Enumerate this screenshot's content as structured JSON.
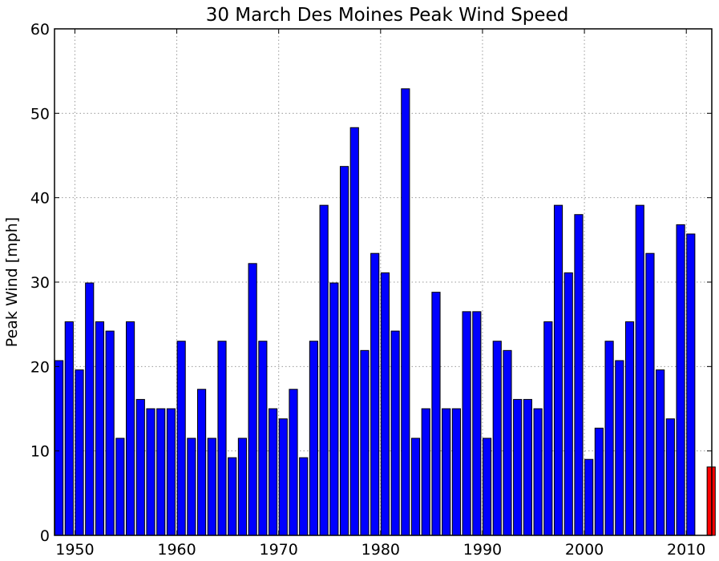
{
  "chart_data": {
    "type": "bar",
    "title": "30 March Des Moines Peak Wind Speed",
    "xlabel": "",
    "ylabel": "Peak Wind [mph]",
    "xlim": [
      1948,
      2012.5
    ],
    "ylim": [
      0,
      60
    ],
    "xticks": [
      1950,
      1960,
      1970,
      1980,
      1990,
      2000,
      2010
    ],
    "yticks": [
      0,
      10,
      20,
      30,
      40,
      50,
      60
    ],
    "grid": true,
    "colors": {
      "bar": "#0000ff",
      "highlight": "#ff0000",
      "edge": "#000000",
      "grid": "#999999"
    },
    "highlight_year": 2012,
    "x": [
      1948,
      1949,
      1950,
      1951,
      1952,
      1953,
      1954,
      1955,
      1956,
      1957,
      1958,
      1959,
      1960,
      1961,
      1962,
      1963,
      1964,
      1965,
      1966,
      1967,
      1968,
      1969,
      1970,
      1971,
      1972,
      1973,
      1974,
      1975,
      1976,
      1977,
      1978,
      1979,
      1980,
      1981,
      1982,
      1983,
      1984,
      1985,
      1986,
      1987,
      1988,
      1989,
      1990,
      1991,
      1992,
      1993,
      1994,
      1995,
      1996,
      1997,
      1998,
      1999,
      2000,
      2001,
      2002,
      2003,
      2004,
      2005,
      2006,
      2007,
      2008,
      2009,
      2010,
      2011,
      2012
    ],
    "values": [
      20.7,
      25.3,
      19.6,
      29.9,
      25.3,
      24.2,
      11.5,
      25.3,
      16.1,
      15.0,
      15.0,
      15.0,
      23.0,
      11.5,
      17.3,
      11.5,
      23.0,
      9.2,
      11.5,
      32.2,
      23.0,
      15.0,
      13.8,
      17.3,
      9.2,
      23.0,
      39.1,
      29.9,
      43.7,
      48.3,
      21.9,
      33.4,
      31.1,
      24.2,
      52.9,
      11.5,
      15.0,
      28.8,
      15.0,
      15.0,
      26.5,
      26.5,
      11.5,
      23.0,
      21.9,
      16.1,
      16.1,
      15.0,
      25.3,
      39.1,
      31.1,
      38.0,
      9.0,
      12.7,
      23.0,
      20.7,
      25.3,
      39.1,
      33.4,
      19.6,
      13.8,
      36.8,
      35.7,
      null,
      8.1
    ]
  }
}
